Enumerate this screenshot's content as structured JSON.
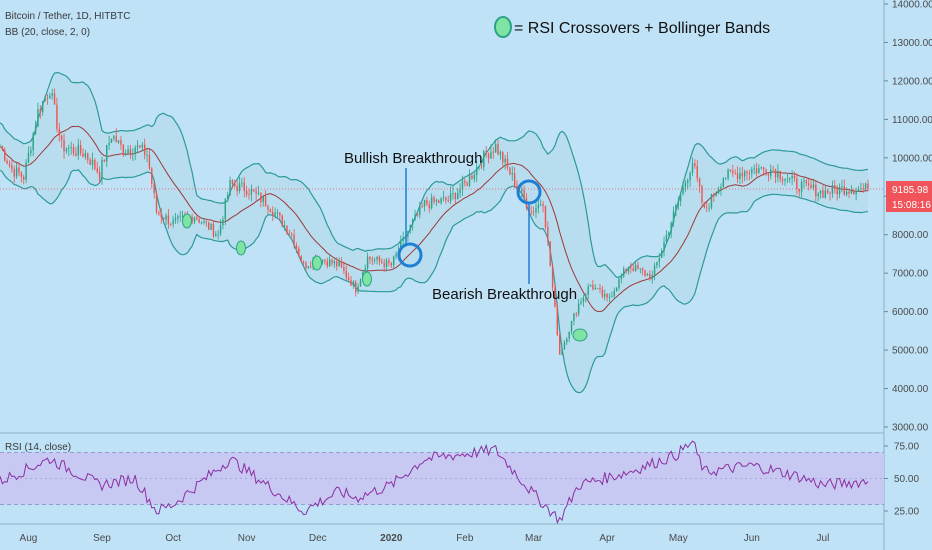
{
  "header": {
    "symbol_line": "Bitcoin / Tether, 1D, HITBTC",
    "indicator_line": "BB (20, close, 2, 0)"
  },
  "legend": {
    "text": "= RSI Crossovers + Bollinger Bands",
    "marker_color": "#7fe3a3"
  },
  "annotations": {
    "bullish": "Bullish Breakthrough",
    "bearish": "Bearish Breakthrough"
  },
  "price_badge": {
    "price": "9185.98",
    "countdown": "15:08:16",
    "color": "#f0545a"
  },
  "rsi_panel": {
    "label": "RSI (14, close)"
  },
  "colors": {
    "background": "#bfe2f7",
    "band_line": "#2c9a9a",
    "band_fill": "#b3dcea",
    "basis": "#9c3a3a",
    "up": "#2aa386",
    "down": "#ef5350",
    "rsi_line": "#8b2fa0",
    "rsi_band": "#c8c4f2",
    "circle": "#1e7fd4"
  },
  "chart_data": [
    {
      "type": "candlestick",
      "title": "Bitcoin / Tether, 1D, HITBTC",
      "indicators": [
        "BB (20, close, 2, 0)"
      ],
      "ylim": [
        3000,
        14000
      ],
      "y_ticks": [
        "14000.00",
        "13000.00",
        "12000.00",
        "11000.00",
        "10000.00",
        "9000.00",
        "8000.00",
        "7000.00",
        "6000.00",
        "5000.00",
        "4000.00",
        "3000.00"
      ],
      "x_ticks": [
        "Aug",
        "Sep",
        "Oct",
        "Nov",
        "Dec",
        "2020",
        "Feb",
        "Mar",
        "Apr",
        "May",
        "Jun",
        "Jul"
      ],
      "close_path": [
        {
          "x": "Jul 20",
          "y": 10300
        },
        {
          "x": "Jul 25",
          "y": 9700
        },
        {
          "x": "Jul 30",
          "y": 9500
        },
        {
          "x": "Aug 5",
          "y": 11200
        },
        {
          "x": "Aug 10",
          "y": 11800
        },
        {
          "x": "Aug 15",
          "y": 10300
        },
        {
          "x": "Aug 20",
          "y": 10200
        },
        {
          "x": "Aug 25",
          "y": 10100
        },
        {
          "x": "Aug 31",
          "y": 9600
        },
        {
          "x": "Sep 5",
          "y": 10600
        },
        {
          "x": "Sep 10",
          "y": 10200
        },
        {
          "x": "Sep 15",
          "y": 10300
        },
        {
          "x": "Sep 20",
          "y": 10100
        },
        {
          "x": "Sep 24",
          "y": 8600
        },
        {
          "x": "Oct 1",
          "y": 8300
        },
        {
          "x": "Oct 10",
          "y": 8500
        },
        {
          "x": "Oct 20",
          "y": 8000
        },
        {
          "x": "Oct 25",
          "y": 9300
        },
        {
          "x": "Nov 1",
          "y": 9200
        },
        {
          "x": "Nov 10",
          "y": 8800
        },
        {
          "x": "Nov 20",
          "y": 8000
        },
        {
          "x": "Nov 25",
          "y": 7200
        },
        {
          "x": "Dec 1",
          "y": 7400
        },
        {
          "x": "Dec 10",
          "y": 7200
        },
        {
          "x": "Dec 17",
          "y": 6600
        },
        {
          "x": "Dec 22",
          "y": 7400
        },
        {
          "x": "Jan 1",
          "y": 7200
        },
        {
          "x": "Jan 8",
          "y": 8100
        },
        {
          "x": "Jan 15",
          "y": 8800
        },
        {
          "x": "Jan 25",
          "y": 8900
        },
        {
          "x": "Feb 1",
          "y": 9300
        },
        {
          "x": "Feb 10",
          "y": 10100
        },
        {
          "x": "Feb 14",
          "y": 10300
        },
        {
          "x": "Feb 20",
          "y": 9600
        },
        {
          "x": "Feb 29",
          "y": 8600
        },
        {
          "x": "Mar 5",
          "y": 8900
        },
        {
          "x": "Mar 12",
          "y": 4900
        },
        {
          "x": "Mar 20",
          "y": 6200
        },
        {
          "x": "Mar 25",
          "y": 6700
        },
        {
          "x": "Apr 1",
          "y": 6300
        },
        {
          "x": "Apr 10",
          "y": 7200
        },
        {
          "x": "Apr 20",
          "y": 6900
        },
        {
          "x": "Apr 30",
          "y": 8700
        },
        {
          "x": "May 7",
          "y": 9900
        },
        {
          "x": "May 12",
          "y": 8600
        },
        {
          "x": "May 20",
          "y": 9500
        },
        {
          "x": "Jun 1",
          "y": 9700
        },
        {
          "x": "Jun 10",
          "y": 9700
        },
        {
          "x": "Jun 20",
          "y": 9300
        },
        {
          "x": "Jul 1",
          "y": 9100
        },
        {
          "x": "Jul 10",
          "y": 9200
        },
        {
          "x": "Jul 20",
          "y": 9186
        }
      ],
      "last_price": 9185.98
    },
    {
      "type": "line",
      "title": "RSI (14, close)",
      "ylim": [
        15,
        85
      ],
      "y_ticks": [
        "75.00",
        "50.00",
        "25.00"
      ],
      "band": [
        30,
        70
      ],
      "path": [
        {
          "x": "Jul 20",
          "y": 48
        },
        {
          "x": "Aug 10",
          "y": 65
        },
        {
          "x": "Aug 31",
          "y": 45
        },
        {
          "x": "Sep 15",
          "y": 50
        },
        {
          "x": "Sep 24",
          "y": 25
        },
        {
          "x": "Oct 1",
          "y": 30
        },
        {
          "x": "Oct 25",
          "y": 65
        },
        {
          "x": "Nov 25",
          "y": 25
        },
        {
          "x": "Dec 10",
          "y": 40
        },
        {
          "x": "Dec 17",
          "y": 35
        },
        {
          "x": "Jan 1",
          "y": 45
        },
        {
          "x": "Jan 15",
          "y": 65
        },
        {
          "x": "Feb 14",
          "y": 72
        },
        {
          "x": "Feb 29",
          "y": 40
        },
        {
          "x": "Mar 12",
          "y": 18
        },
        {
          "x": "Mar 20",
          "y": 45
        },
        {
          "x": "Apr 10",
          "y": 55
        },
        {
          "x": "Apr 30",
          "y": 68
        },
        {
          "x": "May 7",
          "y": 78
        },
        {
          "x": "May 12",
          "y": 55
        },
        {
          "x": "Jun 1",
          "y": 60
        },
        {
          "x": "Jun 20",
          "y": 52
        },
        {
          "x": "Jul 1",
          "y": 45
        },
        {
          "x": "Jul 20",
          "y": 48
        }
      ]
    }
  ]
}
